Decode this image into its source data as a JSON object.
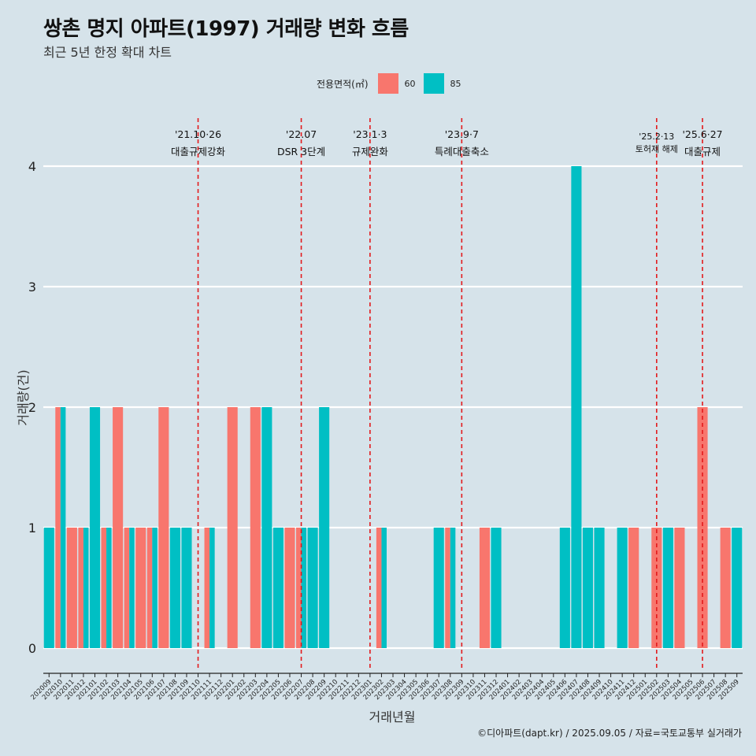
{
  "header": {
    "title": "쌍촌 명지 아파트(1997) 거래량 변화 흐름",
    "subtitle": "최근 5년 한정 확대 차트"
  },
  "legend": {
    "title": "전용면적(㎡)",
    "items": [
      {
        "label": "60",
        "color": "#f8766d"
      },
      {
        "label": "85",
        "color": "#00bfc4"
      }
    ]
  },
  "caption": "©디아파트(dapt.kr) / 2025.09.05 / 자료=국토교통부 실거래가",
  "chart_data": {
    "type": "bar",
    "xlabel": "거래년월",
    "ylabel": "거래량(건)",
    "ylim": [
      0,
      4
    ],
    "yticks": [
      0,
      1,
      2,
      3,
      4
    ],
    "grid": true,
    "categories": [
      "202009",
      "202010",
      "202011",
      "202012",
      "202101",
      "202102",
      "202103",
      "202104",
      "202105",
      "202106",
      "202107",
      "202108",
      "202109",
      "202110",
      "202111",
      "202112",
      "202201",
      "202202",
      "202203",
      "202204",
      "202205",
      "202206",
      "202207",
      "202208",
      "202209",
      "202210",
      "202211",
      "202212",
      "202301",
      "202302",
      "202303",
      "202304",
      "202305",
      "202306",
      "202307",
      "202308",
      "202309",
      "202310",
      "202311",
      "202312",
      "202401",
      "202402",
      "202403",
      "202404",
      "202405",
      "202406",
      "202407",
      "202408",
      "202409",
      "202410",
      "202411",
      "202412",
      "202501",
      "202502",
      "202503",
      "202504",
      "202505",
      "202506",
      "202507",
      "202508",
      "202509"
    ],
    "series": [
      {
        "name": "60",
        "color": "#f8766d",
        "values": [
          0,
          2,
          1,
          1,
          0,
          1,
          2,
          1,
          1,
          1,
          2,
          0,
          0,
          0,
          1,
          0,
          2,
          0,
          2,
          0,
          0,
          1,
          1,
          0,
          0,
          0,
          0,
          0,
          0,
          1,
          0,
          0,
          0,
          0,
          0,
          1,
          0,
          0,
          1,
          0,
          0,
          0,
          0,
          0,
          0,
          0,
          0,
          0,
          0,
          0,
          0,
          1,
          0,
          1,
          0,
          1,
          0,
          2,
          0,
          1,
          0
        ]
      },
      {
        "name": "85",
        "color": "#00bfc4",
        "values": [
          1,
          2,
          0,
          1,
          2,
          1,
          0,
          1,
          0,
          1,
          0,
          1,
          1,
          0,
          1,
          0,
          0,
          0,
          0,
          2,
          1,
          0,
          1,
          1,
          2,
          0,
          0,
          0,
          0,
          1,
          0,
          0,
          0,
          0,
          1,
          1,
          0,
          0,
          0,
          1,
          0,
          0,
          0,
          0,
          0,
          1,
          4,
          1,
          1,
          0,
          1,
          0,
          0,
          0,
          1,
          0,
          0,
          0,
          0,
          0,
          1
        ]
      }
    ],
    "annotations": [
      {
        "date": "'21.10·26",
        "label": "대출규제강화",
        "category": "202110"
      },
      {
        "date": "'22.07",
        "label": "DSR 3단계",
        "category": "202207"
      },
      {
        "date": "'23.1·3",
        "label": "규제완화",
        "category": "202301"
      },
      {
        "date": "'23.9·7",
        "label": "특례대출축소",
        "category": "202309"
      },
      {
        "date": "'25.2·13",
        "label": "토허제 해제",
        "category": "202502"
      },
      {
        "date": "'25.6·27",
        "label": "대출규제",
        "category": "202506"
      }
    ]
  }
}
